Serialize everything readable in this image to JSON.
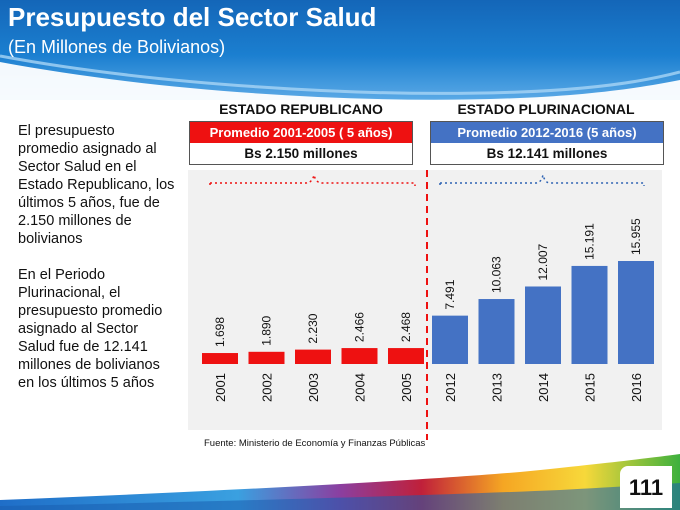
{
  "header": {
    "title": "Presupuesto del Sector Salud",
    "subtitle": "(En Millones de Bolivianos)"
  },
  "side_text": {
    "paragraph1": "El presupuesto promedio asignado al Sector Salud en el Estado  Republicano, los últimos 5 años, fue de 2.150 millones de bolivianos",
    "paragraph2": "En el Periodo Plurinacional, el presupuesto promedio asignado al Sector Salud fue de 12.141 millones de bolivianos en los últimos 5 años"
  },
  "republicano": {
    "title": "ESTADO REPUBLICANO",
    "avg_label": "Promedio 2001-2005 ( 5 años)",
    "avg_value": "Bs 2.150 millones"
  },
  "plurinacional": {
    "title": "ESTADO PLURINACIONAL",
    "avg_label": "Promedio 2012-2016 (5 años)",
    "avg_value": "Bs 12.141 millones"
  },
  "source": "Fuente: Ministerio de Economía y Finanzas Públicas",
  "page_number": "111",
  "colors": {
    "republicano": "#ee1111",
    "plurinacional": "#4472c4",
    "header": "#1b7fd0"
  },
  "chart_data": {
    "type": "bar",
    "categories": [
      "2001",
      "2002",
      "2003",
      "2004",
      "2005",
      "2012",
      "2013",
      "2014",
      "2015",
      "2016"
    ],
    "values": [
      1698,
      1890,
      2230,
      2466,
      2468,
      7491,
      10063,
      12007,
      15191,
      15955
    ],
    "value_labels": [
      "1.698",
      "1.890",
      "2.230",
      "2.466",
      "2.468",
      "7.491",
      "10.063",
      "12.007",
      "15.191",
      "15.955"
    ],
    "groups": [
      "republicano",
      "republicano",
      "republicano",
      "republicano",
      "republicano",
      "plurinacional",
      "plurinacional",
      "plurinacional",
      "plurinacional",
      "plurinacional"
    ],
    "grid": false,
    "legend": "none"
  }
}
